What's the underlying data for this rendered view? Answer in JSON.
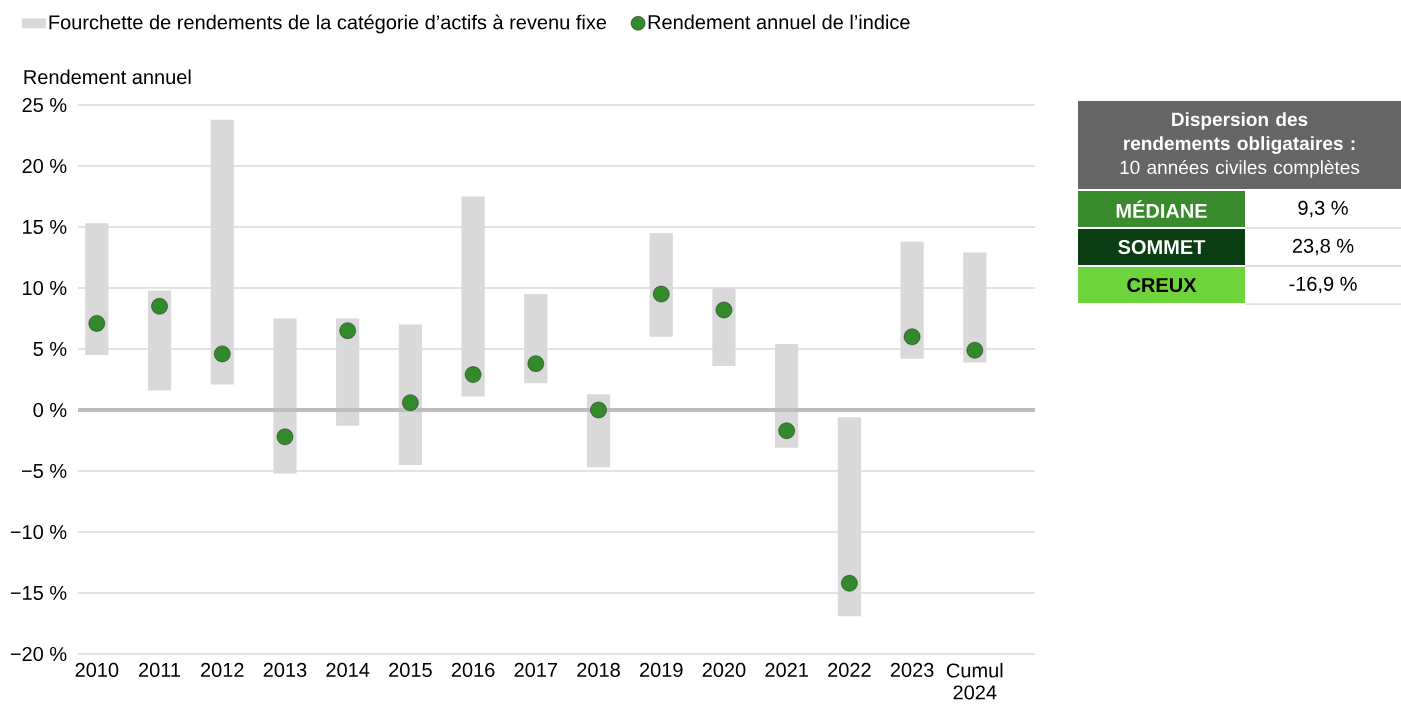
{
  "chart_data": [
    {
      "type": "bar",
      "ylabel": "Rendement annuel",
      "categories": [
        "2010",
        "2011",
        "2012",
        "2013",
        "2014",
        "2015",
        "2016",
        "2017",
        "2018",
        "2019",
        "2020",
        "2021",
        "2022",
        "2023",
        "Cumul 2024"
      ],
      "series": [
        {
          "name": "Fourchette de rendements de la catégorie d’actifs à revenu fixe",
          "type": "bar",
          "color": "#d9d9d9",
          "base": [
            4.5,
            1.6,
            2.1,
            -5.2,
            -1.3,
            -4.5,
            1.1,
            2.2,
            -4.7,
            6.0,
            3.6,
            -3.1,
            -16.9,
            4.2,
            3.9
          ],
          "values": [
            10.8,
            8.2,
            21.7,
            12.7,
            8.8,
            11.5,
            16.4,
            7.3,
            6.0,
            8.5,
            6.4,
            8.5,
            16.3,
            9.6,
            9.0
          ]
        },
        {
          "name": "Rendement annuel de l’indice",
          "type": "scatter",
          "color": "#338a2a",
          "marker": "circle",
          "values": [
            7.1,
            8.5,
            4.6,
            -2.2,
            6.5,
            0.6,
            2.9,
            3.8,
            0.0,
            9.5,
            8.2,
            -1.7,
            -14.2,
            6.0,
            4.9
          ]
        }
      ],
      "ylim": [
        -20,
        25
      ],
      "yticks": [
        {
          "value": -20,
          "label": "−20 %"
        },
        {
          "value": -15,
          "label": "−15 %"
        },
        {
          "value": -10,
          "label": "−10 %"
        },
        {
          "value": -5,
          "label": "−5 %"
        },
        {
          "value": 0,
          "label": "0 %"
        },
        {
          "value": 5,
          "label": "5 %"
        },
        {
          "value": 10,
          "label": "10 %"
        },
        {
          "value": 15,
          "label": "15 %"
        },
        {
          "value": 20,
          "label": "20 %"
        },
        {
          "value": 25,
          "label": "25 %"
        }
      ],
      "ref_lines": [
        {
          "axis": "y",
          "value": 0,
          "color": "#bdbdbd"
        }
      ],
      "grid": "y",
      "legend": "top"
    },
    {
      "type": "other",
      "title": "Dispersion des rendements obligataires :",
      "subtitle": "10 années civiles complètes",
      "annotations": [
        "MÉDIANE",
        "9,3 %",
        "SOMMET",
        "23,8 %",
        "CREUX",
        "-16,9 %"
      ]
    }
  ]
}
